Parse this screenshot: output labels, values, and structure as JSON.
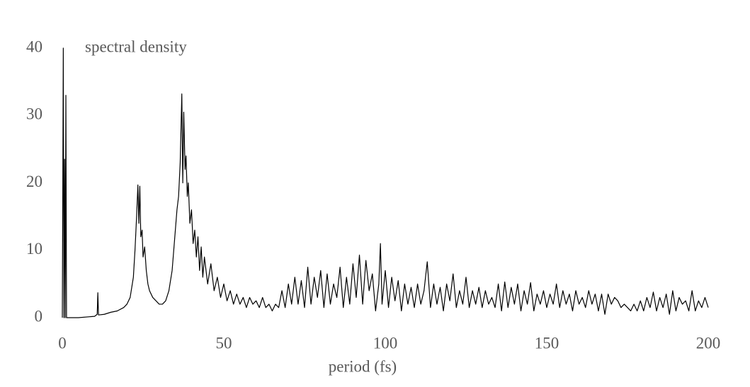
{
  "chart_data": {
    "type": "line",
    "ylabel": "spectral density",
    "xlabel": "period (fs)",
    "color": "#000000",
    "xlim": [
      0,
      200
    ],
    "xticks": [
      0,
      50,
      100,
      150,
      200
    ],
    "ylim": [
      0,
      40
    ],
    "yticks": [
      0,
      10,
      20,
      30,
      40
    ],
    "x": [
      0,
      0.3,
      0.5,
      0.7,
      0.9,
      1.1,
      1.3,
      5,
      10,
      10.8,
      11,
      11.2,
      13,
      15,
      17,
      19,
      20,
      21,
      22,
      22.5,
      23,
      23.4,
      23.7,
      24,
      24.3,
      24.7,
      25,
      25.5,
      26,
      26.5,
      27,
      28,
      29,
      30,
      31,
      32,
      33,
      34,
      34.5,
      35,
      35.5,
      36,
      36.5,
      37,
      37.3,
      37.6,
      38,
      38.3,
      38.7,
      39,
      39.5,
      40,
      40.5,
      41,
      41.5,
      42,
      42.5,
      43,
      43.5,
      44,
      45,
      46,
      47,
      48,
      49,
      50,
      51,
      52,
      53,
      54,
      55,
      56,
      57,
      58,
      59,
      60,
      61,
      62,
      63,
      64,
      65,
      66,
      67,
      68,
      69,
      70,
      71,
      72,
      73,
      74,
      75,
      76,
      77,
      78,
      79,
      80,
      81,
      82,
      83,
      84,
      85,
      86,
      87,
      88,
      89,
      90,
      91,
      92,
      93,
      94,
      95,
      96,
      97,
      98,
      98.5,
      99,
      100,
      101,
      102,
      103,
      104,
      105,
      106,
      107,
      108,
      109,
      110,
      111,
      112,
      113,
      114,
      115,
      116,
      117,
      118,
      119,
      120,
      121,
      122,
      123,
      124,
      125,
      126,
      127,
      128,
      129,
      130,
      131,
      132,
      133,
      134,
      135,
      136,
      137,
      138,
      139,
      140,
      141,
      142,
      143,
      144,
      145,
      146,
      147,
      148,
      149,
      150,
      151,
      152,
      153,
      154,
      155,
      156,
      157,
      158,
      159,
      160,
      161,
      162,
      163,
      164,
      165,
      166,
      167,
      168,
      169,
      170,
      171,
      172,
      173,
      174,
      175,
      176,
      177,
      178,
      179,
      180,
      181,
      182,
      183,
      184,
      185,
      186,
      187,
      188,
      189,
      190,
      191,
      192,
      193,
      194,
      195,
      196,
      197,
      198,
      199,
      200
    ],
    "values": [
      0,
      40,
      0,
      23.5,
      0,
      33,
      0,
      0,
      0.2,
      0.5,
      3.7,
      0.4,
      0.5,
      0.8,
      1,
      1.5,
      2,
      3,
      6,
      10,
      15,
      19.7,
      14,
      19.5,
      12,
      13,
      9,
      10.5,
      7,
      5,
      4,
      3,
      2.5,
      2,
      2,
      2.5,
      4,
      7,
      10,
      13,
      16,
      18,
      23,
      33.2,
      20,
      30.5,
      22,
      24,
      18,
      20,
      14,
      16,
      11,
      13,
      9,
      12,
      7,
      10.5,
      6,
      9,
      5,
      8,
      4,
      6,
      3,
      5,
      2.5,
      4,
      2,
      3.5,
      2,
      3,
      1.5,
      3,
      2,
      2.5,
      1.5,
      3,
      1.5,
      2,
      1,
      2,
      1.5,
      4,
      1.5,
      5,
      2,
      6,
      2,
      5.5,
      1.5,
      7.5,
      2,
      6,
      3,
      7,
      1.5,
      6.5,
      2,
      5,
      3,
      7.5,
      1.5,
      6,
      2,
      8,
      3,
      9.3,
      2,
      8.5,
      4,
      6.5,
      1,
      5,
      11,
      2,
      7,
      1.5,
      6,
      2.5,
      5.5,
      1,
      5,
      2,
      4.5,
      1.5,
      5,
      2,
      4,
      8.3,
      1.5,
      5,
      2,
      4.5,
      1,
      5,
      2.5,
      6.5,
      1.5,
      4,
      2,
      6,
      1.5,
      4,
      2,
      4.5,
      1.5,
      4,
      2,
      3,
      1.5,
      5,
      1,
      5.3,
      1.5,
      4.5,
      2,
      5,
      1,
      4,
      2,
      5.2,
      1,
      3.5,
      2,
      4,
      1.5,
      3.5,
      2,
      5,
      1.5,
      4,
      2,
      3.5,
      1,
      4,
      2,
      3,
      1.5,
      4,
      2,
      3.5,
      1,
      3.5,
      0.5,
      3.5,
      2,
      3,
      2.5,
      1.5,
      2,
      1.5,
      1,
      2,
      1,
      2.5,
      1,
      3,
      1.5,
      3.8,
      1,
      3,
      1.5,
      3.5,
      0.5,
      4,
      1,
      3,
      2,
      2.5,
      1,
      4,
      1,
      2.5,
      1.5,
      3,
      1.5
    ]
  }
}
